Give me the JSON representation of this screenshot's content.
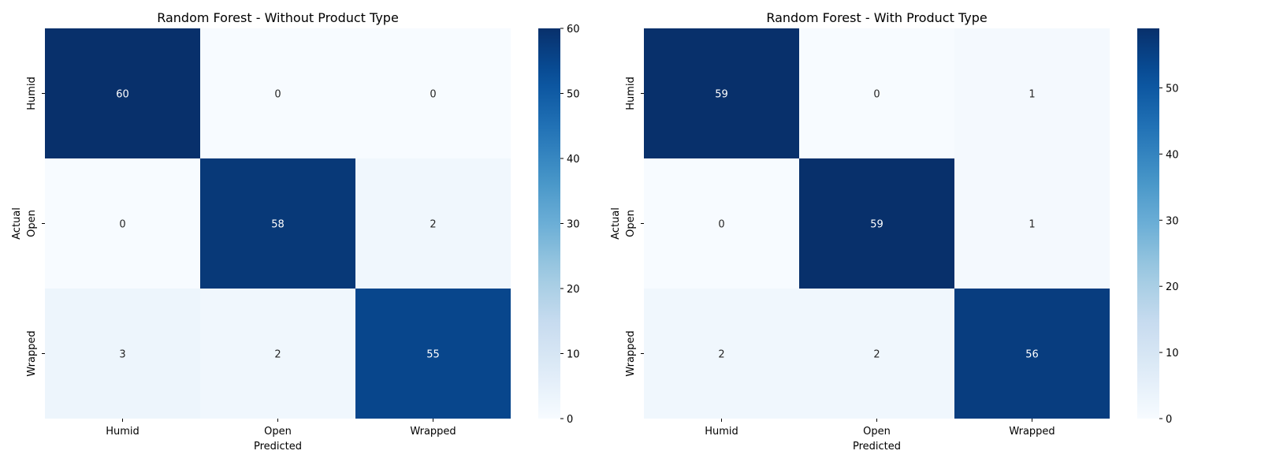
{
  "chart_data": [
    {
      "type": "heatmap",
      "title": "Random Forest - Without Product Type",
      "xlabel": "Predicted",
      "ylabel": "Actual",
      "x_categories": [
        "Humid",
        "Open",
        "Wrapped"
      ],
      "y_categories": [
        "Humid",
        "Open",
        "Wrapped"
      ],
      "values": [
        [
          60,
          0,
          0
        ],
        [
          0,
          58,
          2
        ],
        [
          3,
          2,
          55
        ]
      ],
      "colormap": "Blues",
      "color_range": [
        0,
        60
      ],
      "colorbar_ticks": [
        0,
        10,
        20,
        30,
        40,
        50,
        60
      ],
      "grid": false
    },
    {
      "type": "heatmap",
      "title": "Random Forest - With Product Type",
      "xlabel": "Predicted",
      "ylabel": "Actual",
      "x_categories": [
        "Humid",
        "Open",
        "Wrapped"
      ],
      "y_categories": [
        "Humid",
        "Open",
        "Wrapped"
      ],
      "values": [
        [
          59,
          0,
          1
        ],
        [
          0,
          59,
          1
        ],
        [
          2,
          2,
          56
        ]
      ],
      "colormap": "Blues",
      "color_range": [
        0,
        59
      ],
      "colorbar_ticks": [
        0,
        10,
        20,
        30,
        40,
        50
      ],
      "grid": false
    }
  ]
}
